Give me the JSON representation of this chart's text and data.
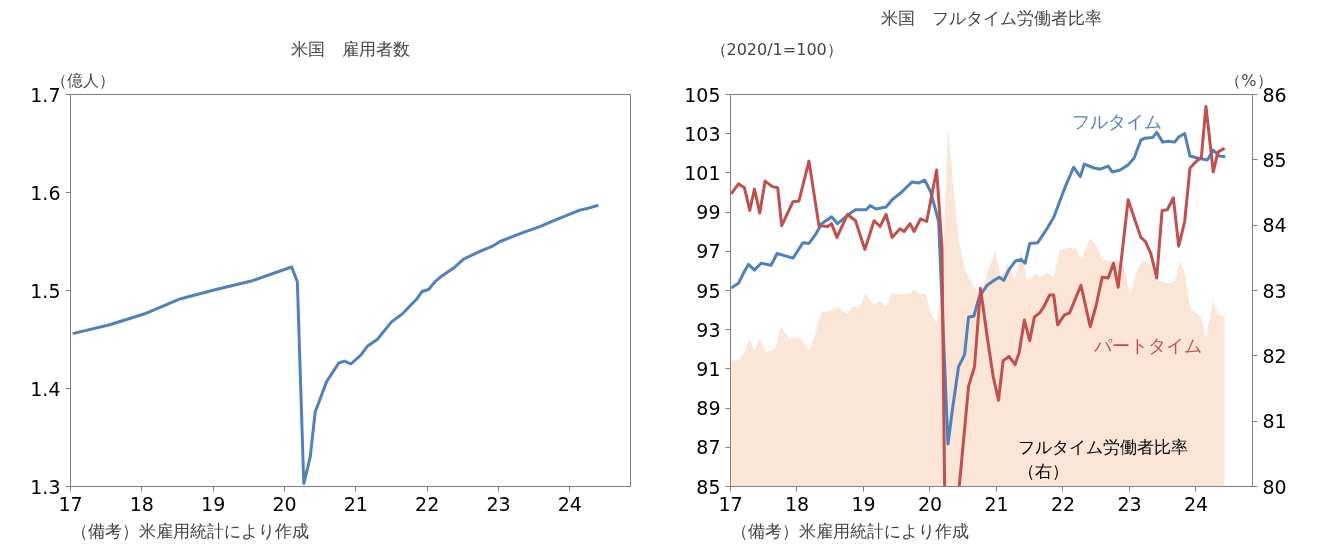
{
  "chart_data": [
    {
      "type": "line",
      "title": "米国　雇用者数",
      "ylabel": "（億人）",
      "annotations": [
        "（備考）米雇用統計により作成"
      ],
      "xlim": [
        17,
        24.85
      ],
      "xticks": [
        17,
        18,
        19,
        20,
        21,
        22,
        23,
        24
      ],
      "ylim": [
        1.3,
        1.7
      ],
      "yticks": [
        1.3,
        1.4,
        1.5,
        1.6,
        1.7
      ],
      "grid": false,
      "line_style": "solid",
      "marker": "none",
      "series": [
        {
          "color": "#4f81bd",
          "x": [
            17.03,
            17.55,
            18.03,
            18.52,
            19.04,
            19.55,
            20.1,
            20.18,
            20.27,
            20.36,
            20.43,
            20.59,
            20.76,
            20.84,
            20.93,
            21.07,
            21.16,
            21.3,
            21.5,
            21.65,
            21.85,
            21.93,
            22.02,
            22.11,
            22.19,
            22.39,
            22.51,
            22.77,
            22.91,
            23.02,
            23.34,
            23.57,
            23.8,
            24.14,
            24.26,
            24.4
          ],
          "values": [
            1.456,
            1.465,
            1.476,
            1.491,
            1.501,
            1.51,
            1.524,
            1.509,
            1.303,
            1.33,
            1.376,
            1.407,
            1.426,
            1.428,
            1.425,
            1.434,
            1.443,
            1.45,
            1.468,
            1.476,
            1.491,
            1.499,
            1.501,
            1.509,
            1.514,
            1.524,
            1.532,
            1.541,
            1.545,
            1.55,
            1.559,
            1.565,
            1.572,
            1.582,
            1.584,
            1.587
          ]
        }
      ]
    },
    {
      "type": "line",
      "title": "米国　フルタイム労働者比率",
      "ylabel": "（2020/1=100）",
      "y2label": "（%）",
      "annotations": [
        "（備考）米雇用統計により作成"
      ],
      "xlim": [
        17,
        24.85
      ],
      "xticks": [
        17,
        18,
        19,
        20,
        21,
        22,
        23,
        24
      ],
      "ylim": [
        85,
        105
      ],
      "yticks": [
        85,
        87,
        89,
        91,
        93,
        95,
        97,
        99,
        101,
        103,
        105
      ],
      "y2lim": [
        80,
        86
      ],
      "y2ticks": [
        80,
        81,
        82,
        83,
        84,
        85,
        86
      ],
      "grid": false,
      "line_style": "solid",
      "marker": "none",
      "series": [
        {
          "type": "area",
          "axis": "y2",
          "name": "フルタイム労働者比率（右）",
          "color": "#fbe5d6",
          "x": [
            17.01,
            17.12,
            17.21,
            17.29,
            17.36,
            17.44,
            17.53,
            17.67,
            17.76,
            17.88,
            18.0,
            18.09,
            18.18,
            18.27,
            18.37,
            18.49,
            18.61,
            18.76,
            18.82,
            18.94,
            19.02,
            19.16,
            19.25,
            19.34,
            19.43,
            19.55,
            19.7,
            19.76,
            19.86,
            19.93,
            20.01,
            20.1,
            20.18,
            20.27,
            20.35,
            20.43,
            20.52,
            20.65,
            20.76,
            20.86,
            20.98,
            21.07,
            21.16,
            21.28,
            21.37,
            21.47,
            21.59,
            21.65,
            21.77,
            21.86,
            21.95,
            22.1,
            22.19,
            22.28,
            22.41,
            22.5,
            22.59,
            22.71,
            22.8,
            22.91,
            23.01,
            23.13,
            23.22,
            23.32,
            23.41,
            23.49,
            23.59,
            23.68,
            23.76,
            23.83,
            23.91,
            24.02,
            24.08,
            24.15,
            24.25,
            24.34,
            24.43
          ],
          "values": [
            81.93,
            81.93,
            82.05,
            82.26,
            82.08,
            82.26,
            82.05,
            82.11,
            82.44,
            82.26,
            82.29,
            82.23,
            82.08,
            82.32,
            82.67,
            82.68,
            82.75,
            82.64,
            82.75,
            82.75,
            82.95,
            82.78,
            82.84,
            82.75,
            82.96,
            82.93,
            82.96,
            83.01,
            82.93,
            82.97,
            82.66,
            82.5,
            83.02,
            85.51,
            84.6,
            83.81,
            83.33,
            83.08,
            82.9,
            83.26,
            83.6,
            83.2,
            83.42,
            83.17,
            83.6,
            83.14,
            83.26,
            83.2,
            83.28,
            83.2,
            83.62,
            83.66,
            83.63,
            83.48,
            83.8,
            83.69,
            83.48,
            83.45,
            83.48,
            83.39,
            82.93,
            83.36,
            83.46,
            83.39,
            83.14,
            83.14,
            83.11,
            83.14,
            83.45,
            83.26,
            82.75,
            82.63,
            82.6,
            82.26,
            82.84,
            82.63,
            82.6
          ]
        },
        {
          "name": "フルタイム",
          "color": "#4f81bd",
          "x": [
            17.01,
            17.12,
            17.21,
            17.27,
            17.36,
            17.46,
            17.61,
            17.7,
            17.94,
            18.09,
            18.18,
            18.27,
            18.37,
            18.52,
            18.61,
            18.79,
            18.88,
            19.04,
            19.1,
            19.19,
            19.34,
            19.43,
            19.58,
            19.73,
            19.83,
            19.92,
            20.01,
            20.13,
            20.27,
            20.34,
            20.43,
            20.52,
            20.58,
            20.66,
            20.74,
            20.86,
            20.95,
            21.04,
            21.11,
            21.19,
            21.28,
            21.37,
            21.43,
            21.5,
            21.62,
            21.77,
            21.86,
            22.04,
            22.16,
            22.26,
            22.32,
            22.47,
            22.56,
            22.68,
            22.74,
            22.86,
            22.98,
            23.07,
            23.17,
            23.23,
            23.35,
            23.41,
            23.5,
            23.59,
            23.68,
            23.74,
            23.83,
            23.91,
            24.02,
            24.17,
            24.26,
            24.35,
            24.44
          ],
          "values": [
            95.13,
            95.37,
            95.98,
            96.33,
            96.04,
            96.39,
            96.29,
            96.89,
            96.65,
            97.44,
            97.4,
            97.81,
            98.41,
            98.76,
            98.41,
            98.92,
            99.12,
            99.12,
            99.33,
            99.16,
            99.26,
            99.63,
            100.04,
            100.54,
            100.48,
            100.64,
            100.04,
            98.52,
            87.17,
            88.99,
            91.12,
            91.73,
            93.65,
            93.69,
            94.67,
            95.27,
            95.48,
            95.68,
            95.52,
            96.08,
            96.49,
            96.59,
            96.39,
            97.4,
            97.44,
            98.21,
            98.72,
            100.34,
            101.29,
            100.81,
            101.45,
            101.25,
            101.19,
            101.35,
            101.05,
            101.15,
            101.41,
            101.76,
            102.67,
            102.77,
            102.81,
            103.07,
            102.57,
            102.61,
            102.57,
            102.83,
            103.01,
            101.86,
            101.76,
            101.66,
            102.16,
            101.86,
            101.82
          ]
        },
        {
          "name": "パートタイム",
          "color": "#c0504d",
          "x": [
            17.01,
            17.12,
            17.21,
            17.29,
            17.36,
            17.44,
            17.52,
            17.63,
            17.71,
            17.77,
            17.94,
            18.03,
            18.18,
            18.33,
            18.46,
            18.52,
            18.6,
            18.76,
            18.88,
            19.02,
            19.16,
            19.25,
            19.34,
            19.43,
            19.55,
            19.61,
            19.7,
            19.76,
            19.86,
            19.95,
            20.1,
            20.18,
            20.22,
            20.33,
            20.44,
            20.58,
            20.67,
            20.76,
            20.86,
            20.95,
            21.03,
            21.1,
            21.19,
            21.28,
            21.34,
            21.42,
            21.5,
            21.57,
            21.65,
            21.71,
            21.8,
            21.86,
            21.92,
            22.02,
            22.1,
            22.27,
            22.41,
            22.5,
            22.59,
            22.68,
            22.76,
            22.83,
            22.98,
            23.17,
            23.24,
            23.32,
            23.41,
            23.49,
            23.57,
            23.66,
            23.74,
            23.83,
            23.91,
            24.02,
            24.08,
            24.15,
            24.26,
            24.33,
            24.43
          ],
          "values": [
            99.93,
            100.44,
            100.24,
            99.08,
            100.18,
            98.96,
            100.58,
            100.3,
            100.24,
            98.31,
            99.53,
            99.57,
            101.6,
            98.31,
            98.27,
            98.41,
            97.71,
            98.88,
            98.56,
            97.1,
            98.56,
            98.27,
            98.88,
            97.71,
            98.15,
            98.01,
            98.41,
            98.01,
            98.66,
            98.52,
            101.15,
            97.2,
            85,
            null,
            85,
            90.11,
            91.12,
            95.11,
            92.64,
            90.61,
            89.4,
            91.42,
            91.63,
            91.22,
            91.83,
            93.49,
            92.44,
            93.65,
            93.86,
            94.16,
            94.77,
            94.77,
            93.25,
            93.75,
            93.86,
            95.27,
            93.15,
            94.26,
            95.68,
            95.64,
            96.39,
            95.17,
            99.63,
            97.71,
            97.5,
            96.89,
            95.64,
            99.08,
            99.12,
            99.73,
            97.26,
            98.52,
            101.25,
            101.64,
            101.76,
            104.39,
            101.05,
            102.06,
            102.26
          ]
        }
      ]
    }
  ]
}
